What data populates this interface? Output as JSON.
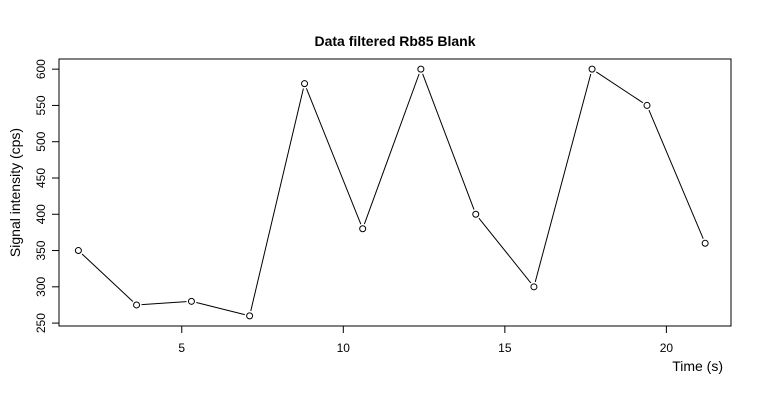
{
  "chart_data": {
    "type": "line",
    "title": "Data filtered Rb85 Blank",
    "xlabel": "Time (s)",
    "ylabel": "Signal intensity (cps)",
    "xlim": [
      1.2,
      22.0
    ],
    "ylim": [
      246,
      614
    ],
    "xticks": [
      5,
      10,
      15,
      20
    ],
    "yticks": [
      250,
      300,
      350,
      400,
      450,
      500,
      550,
      600
    ],
    "grid": false,
    "legend": "none",
    "series": [
      {
        "x": [
          1.8,
          3.6,
          5.3,
          7.1,
          8.8,
          10.6,
          12.4,
          14.1,
          15.9,
          17.7,
          19.4,
          21.2
        ],
        "y": [
          350,
          275,
          280,
          260,
          580,
          380,
          600,
          400,
          300,
          600,
          550,
          360
        ]
      }
    ]
  }
}
